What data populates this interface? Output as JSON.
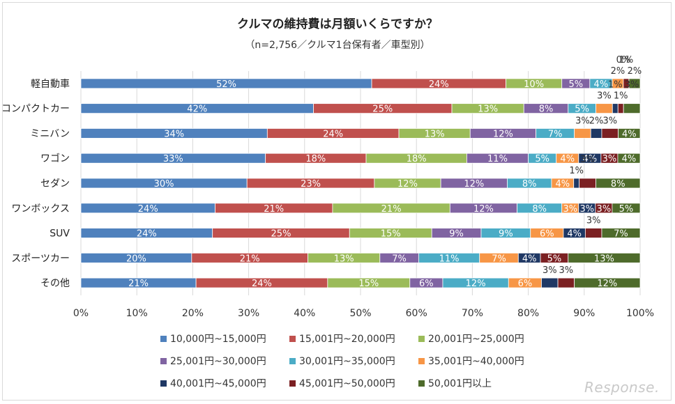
{
  "chart_data": {
    "type": "bar",
    "orientation": "horizontal",
    "stacked": "percent",
    "title": "クルマの維持費は月額いくらですか？",
    "subtitle": "（n=2,756／クルマ1台保有者／車型別）",
    "categories": [
      "軽自動車",
      "コンパクトカー",
      "ミニバン",
      "ワゴン",
      "セダン",
      "ワンボックス",
      "SUV",
      "スポーツカー",
      "その他"
    ],
    "series": [
      {
        "name": "10,000円~15,000円",
        "color": "#4f81bd",
        "values": [
          52,
          42,
          34,
          33,
          30,
          24,
          24,
          20,
          21
        ]
      },
      {
        "name": "15,001円~20,000円",
        "color": "#c0504d",
        "values": [
          24,
          25,
          24,
          18,
          23,
          21,
          25,
          21,
          24
        ]
      },
      {
        "name": "20,001円~25,000円",
        "color": "#9bbb59",
        "values": [
          10,
          13,
          13,
          18,
          12,
          21,
          15,
          13,
          15
        ]
      },
      {
        "name": "25,001円~30,000円",
        "color": "#8064a2",
        "values": [
          5,
          8,
          12,
          11,
          12,
          12,
          9,
          7,
          6
        ]
      },
      {
        "name": "30,001円~35,000円",
        "color": "#4bacc6",
        "values": [
          4,
          5,
          7,
          5,
          8,
          8,
          9,
          11,
          12
        ]
      },
      {
        "name": "35,001円~40,000円",
        "color": "#f79646",
        "values": [
          2,
          3,
          3,
          4,
          4,
          3,
          6,
          7,
          6
        ]
      },
      {
        "name": "40,001円~45,000円",
        "color": "#1f3864",
        "values": [
          0,
          1,
          2,
          4,
          1,
          3,
          4,
          4,
          3
        ]
      },
      {
        "name": "45,001円~50,000円",
        "color": "#7b2022",
        "values": [
          1,
          1,
          3,
          3,
          3,
          3,
          3,
          5,
          3
        ]
      },
      {
        "name": "50,001円以上",
        "color": "#4e6b2b",
        "values": [
          2,
          3,
          4,
          4,
          8,
          5,
          7,
          13,
          12
        ]
      }
    ],
    "xlim": [
      0,
      100
    ],
    "x_ticks": [
      "0%",
      "10%",
      "20%",
      "30%",
      "40%",
      "50%",
      "60%",
      "70%",
      "80%",
      "90%",
      "100%"
    ],
    "legend_position": "bottom",
    "grid": true
  },
  "logo_text": "Response."
}
